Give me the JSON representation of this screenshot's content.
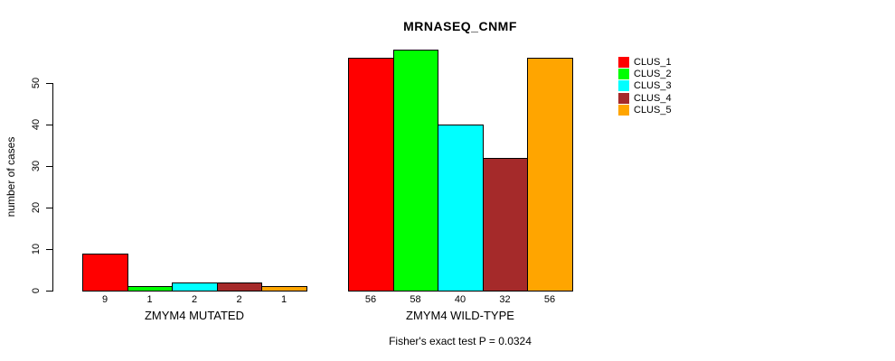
{
  "chart_data": {
    "type": "bar",
    "title": "MRNASEQ_CNMF",
    "ylabel": "number of cases",
    "xlabel": "",
    "ylim": [
      0,
      50
    ],
    "y_ticks": [
      0,
      10,
      20,
      30,
      40,
      50
    ],
    "grid": false,
    "legend_position": "right",
    "bar_value_labels_shown": true,
    "categories": [
      "ZMYM4 MUTATED",
      "ZMYM4 WILD-TYPE"
    ],
    "series": [
      {
        "name": "CLUS_1",
        "color": "#ff0000",
        "values": [
          9,
          56
        ]
      },
      {
        "name": "CLUS_2",
        "color": "#00ff00",
        "values": [
          1,
          58
        ]
      },
      {
        "name": "CLUS_3",
        "color": "#00ffff",
        "values": [
          2,
          40
        ]
      },
      {
        "name": "CLUS_4",
        "color": "#a52a2a",
        "values": [
          2,
          32
        ]
      },
      {
        "name": "CLUS_5",
        "color": "#ffa500",
        "values": [
          1,
          56
        ]
      }
    ],
    "annotation": "Fisher's exact test P = 0.0324"
  }
}
